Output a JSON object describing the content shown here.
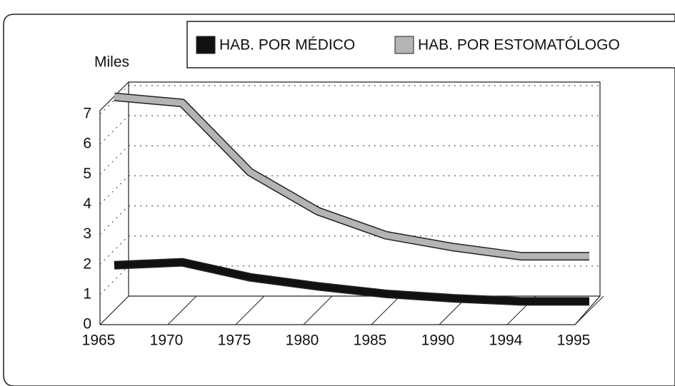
{
  "chart_data": {
    "type": "line",
    "y_axis_label": "Miles",
    "categories": [
      "1965",
      "1970",
      "1975",
      "1980",
      "1985",
      "1990",
      "1994",
      "1995"
    ],
    "series": [
      {
        "name": "HAB. POR MÉDICO",
        "color": "#111111",
        "values": [
          1.5,
          1.6,
          1.1,
          0.8,
          0.55,
          0.4,
          0.3,
          0.3
        ]
      },
      {
        "name": "HAB. POR ESTOMATÓLOGO",
        "color": "#b4b4b4",
        "values": [
          7.1,
          6.9,
          4.6,
          3.3,
          2.5,
          2.1,
          1.8,
          1.8
        ]
      }
    ],
    "ylim": [
      0,
      7
    ],
    "yticks": [
      0,
      1,
      2,
      3,
      4,
      5,
      6,
      7
    ],
    "grid": true
  }
}
